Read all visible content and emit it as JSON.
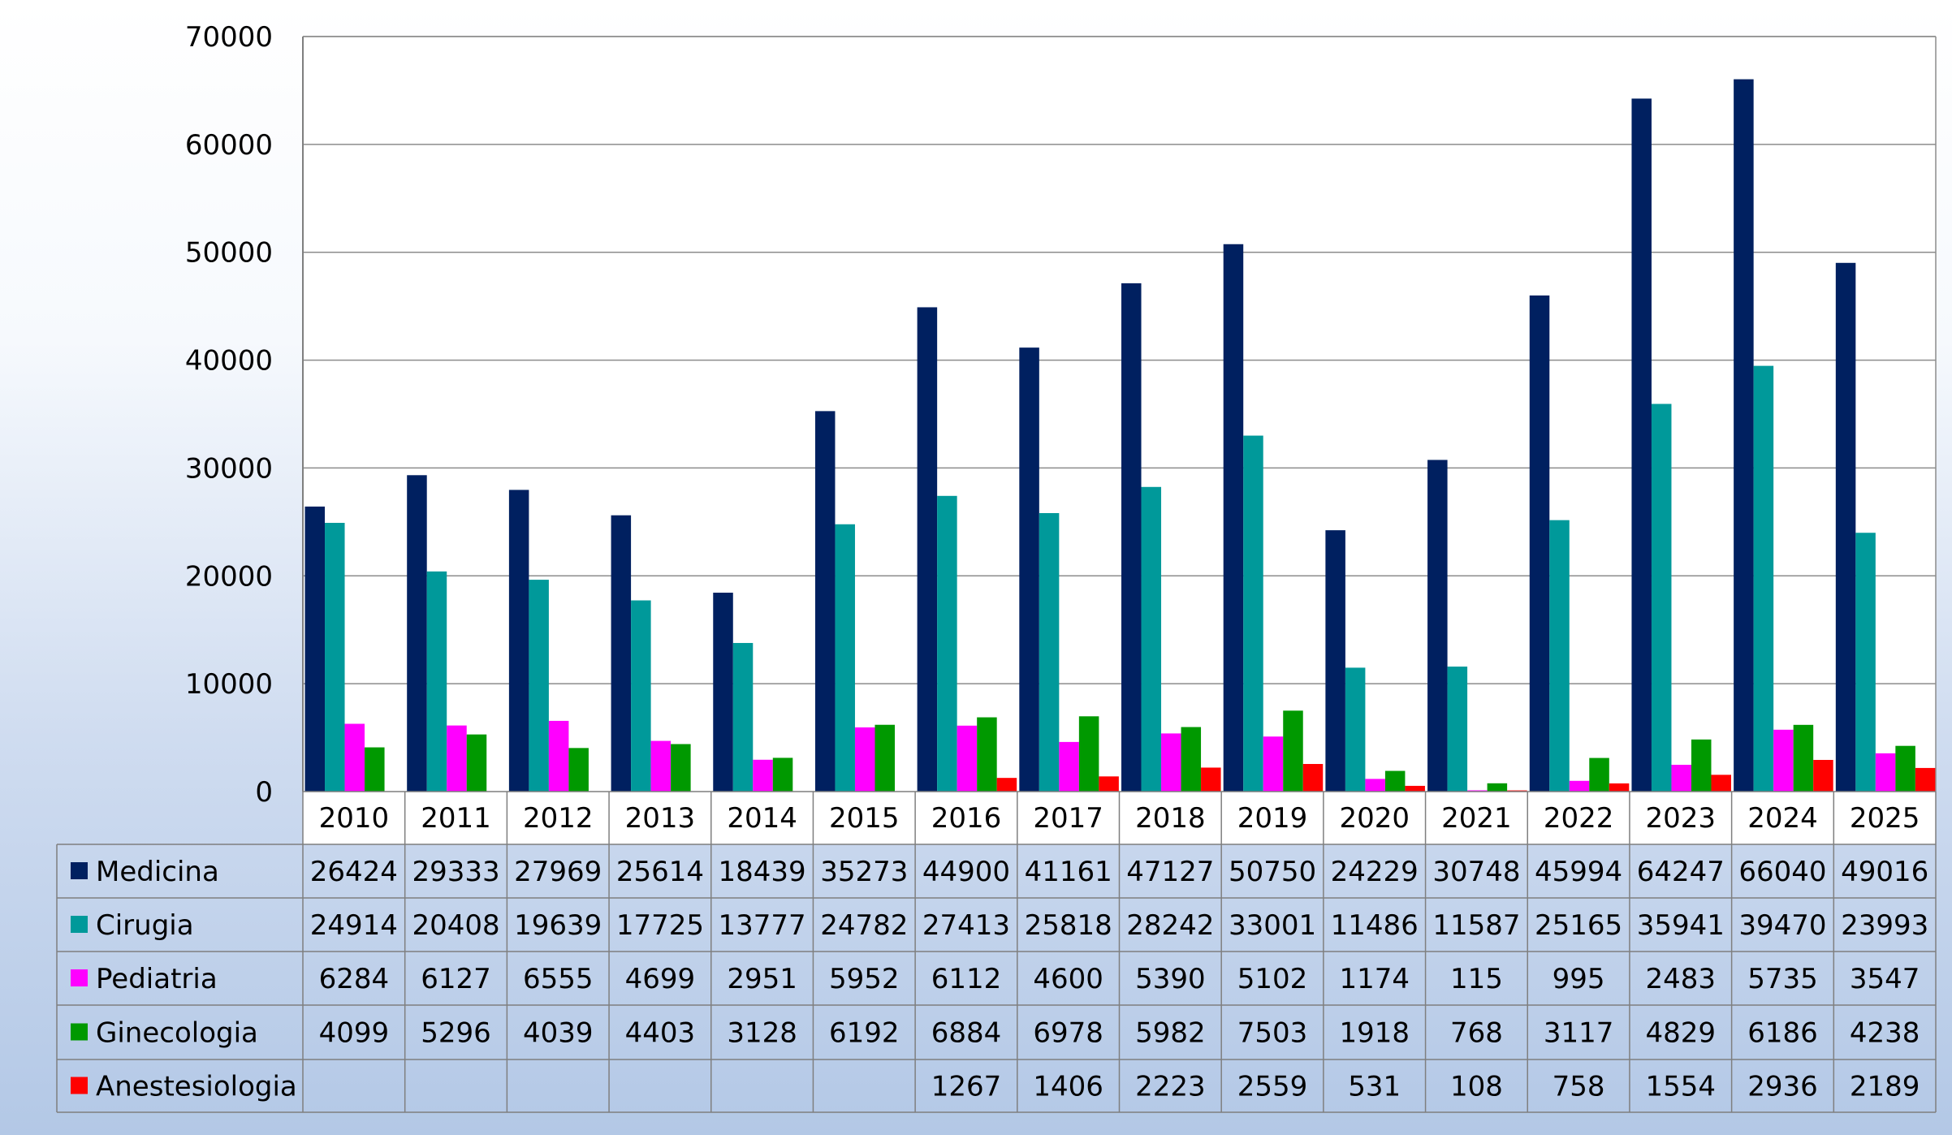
{
  "chart_data": {
    "type": "bar",
    "title": "",
    "xlabel": "",
    "ylabel": "",
    "ylim": [
      0,
      70000
    ],
    "yticks": [
      0,
      10000,
      20000,
      30000,
      40000,
      50000,
      60000,
      70000
    ],
    "grid": true,
    "legend": "data-table",
    "categories": [
      "2010",
      "2011",
      "2012",
      "2013",
      "2014",
      "2015",
      "2016",
      "2017",
      "2018",
      "2019",
      "2020",
      "2021",
      "2022",
      "2023",
      "2024",
      "2025"
    ],
    "series": [
      {
        "name": "Medicina",
        "color": "#002060",
        "values": [
          26424,
          29333,
          27969,
          25614,
          18439,
          35273,
          44900,
          41161,
          47127,
          50750,
          24229,
          30748,
          45994,
          64247,
          66040,
          49016
        ]
      },
      {
        "name": "Cirugia",
        "color": "#00999A",
        "values": [
          24914,
          20408,
          19639,
          17725,
          13777,
          24782,
          27413,
          25818,
          28242,
          33001,
          11486,
          11587,
          25165,
          35941,
          39470,
          23993
        ]
      },
      {
        "name": "Pediatria",
        "color": "#FF00FF",
        "values": [
          6284,
          6127,
          6555,
          4699,
          2951,
          5952,
          6112,
          4600,
          5390,
          5102,
          1174,
          115,
          995,
          2483,
          5735,
          3547
        ]
      },
      {
        "name": "Ginecologia",
        "color": "#009900",
        "values": [
          4099,
          5296,
          4039,
          4403,
          3128,
          6192,
          6884,
          6978,
          5982,
          7503,
          1918,
          768,
          3117,
          4829,
          6186,
          4238
        ]
      },
      {
        "name": "Anestesiologia",
        "color": "#FF0000",
        "values": [
          null,
          null,
          null,
          null,
          null,
          null,
          1267,
          1406,
          2223,
          2559,
          531,
          108,
          758,
          1554,
          2936,
          2189
        ]
      }
    ]
  }
}
